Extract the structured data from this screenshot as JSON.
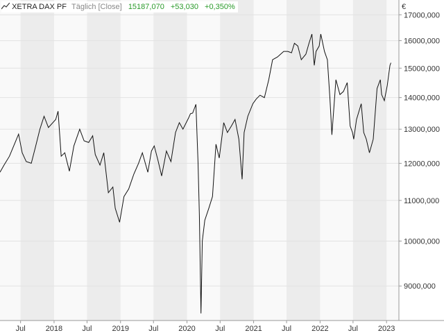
{
  "header": {
    "symbol": "XETRA DAX PF",
    "frequency": "Täglich [Close]",
    "last_value": "15187,070",
    "change": "+53,030",
    "change_pct": "+0,350%"
  },
  "currency": "€",
  "colors": {
    "line": "#111111",
    "positive": "#2a9a2a",
    "band": "#ececec",
    "grid": "#e2e2e2"
  },
  "chart_data": {
    "type": "line",
    "y_scale": "log",
    "ylim": [
      8300,
      17600
    ],
    "xlim": [
      "2017-03-10",
      "2023-03-10"
    ],
    "y_ticks": [
      {
        "value": 9000,
        "label": "9000,000"
      },
      {
        "value": 10000,
        "label": "10000,000"
      },
      {
        "value": 11000,
        "label": "11000,000"
      },
      {
        "value": 12000,
        "label": "12000,000"
      },
      {
        "value": 13000,
        "label": "13000,000"
      },
      {
        "value": 14000,
        "label": "14000,000"
      },
      {
        "value": 15000,
        "label": "15000,000"
      },
      {
        "value": 16000,
        "label": "16000,000"
      },
      {
        "value": 17000,
        "label": "17000,000"
      }
    ],
    "x_ticks": [
      {
        "date": "2017-07-01",
        "label": "Jul"
      },
      {
        "date": "2018-01-01",
        "label": "2018"
      },
      {
        "date": "2018-07-01",
        "label": "Jul"
      },
      {
        "date": "2019-01-01",
        "label": "2019"
      },
      {
        "date": "2019-07-01",
        "label": "Jul"
      },
      {
        "date": "2020-01-01",
        "label": "2020"
      },
      {
        "date": "2020-07-01",
        "label": "Jul"
      },
      {
        "date": "2021-01-01",
        "label": "2021"
      },
      {
        "date": "2021-07-01",
        "label": "Jul"
      },
      {
        "date": "2022-01-01",
        "label": "2022"
      },
      {
        "date": "2022-07-01",
        "label": "Jul"
      },
      {
        "date": "2023-01-01",
        "label": "2023"
      }
    ],
    "x": [
      "2017-03-10",
      "2017-04-01",
      "2017-05-01",
      "2017-06-01",
      "2017-06-20",
      "2017-07-10",
      "2017-08-01",
      "2017-08-29",
      "2017-09-20",
      "2017-10-15",
      "2017-11-07",
      "2017-12-01",
      "2018-01-10",
      "2018-01-23",
      "2018-02-09",
      "2018-03-01",
      "2018-03-26",
      "2018-04-20",
      "2018-05-22",
      "2018-06-15",
      "2018-07-10",
      "2018-08-01",
      "2018-08-15",
      "2018-09-10",
      "2018-10-01",
      "2018-10-26",
      "2018-11-20",
      "2018-12-03",
      "2018-12-27",
      "2019-01-20",
      "2019-02-15",
      "2019-03-15",
      "2019-04-10",
      "2019-05-01",
      "2019-05-31",
      "2019-06-20",
      "2019-07-05",
      "2019-07-25",
      "2019-08-15",
      "2019-09-10",
      "2019-10-05",
      "2019-10-30",
      "2019-11-20",
      "2019-12-10",
      "2020-01-10",
      "2020-01-20",
      "2020-02-01",
      "2020-02-19",
      "2020-03-02",
      "2020-03-09",
      "2020-03-18",
      "2020-03-25",
      "2020-04-08",
      "2020-04-30",
      "2020-05-20",
      "2020-06-08",
      "2020-06-26",
      "2020-07-21",
      "2020-08-10",
      "2020-09-01",
      "2020-09-21",
      "2020-10-12",
      "2020-10-30",
      "2020-11-10",
      "2020-11-30",
      "2020-12-28",
      "2021-01-15",
      "2021-02-05",
      "2021-03-01",
      "2021-03-25",
      "2021-04-15",
      "2021-05-12",
      "2021-06-15",
      "2021-07-08",
      "2021-07-28",
      "2021-08-13",
      "2021-09-01",
      "2021-09-20",
      "2021-10-15",
      "2021-11-01",
      "2021-11-17",
      "2021-11-30",
      "2021-12-10",
      "2021-12-27",
      "2022-01-05",
      "2022-01-25",
      "2022-02-10",
      "2022-02-24",
      "2022-03-07",
      "2022-03-29",
      "2022-04-20",
      "2022-05-09",
      "2022-05-30",
      "2022-06-15",
      "2022-06-28",
      "2022-07-05",
      "2022-07-20",
      "2022-08-15",
      "2022-08-29",
      "2022-09-12",
      "2022-09-29",
      "2022-10-20",
      "2022-11-10",
      "2022-11-28",
      "2022-12-05",
      "2022-12-20",
      "2023-01-05",
      "2023-01-20",
      "2023-01-25"
    ],
    "values": [
      11750,
      11950,
      12200,
      12600,
      12850,
      12300,
      12050,
      12000,
      12450,
      13000,
      13400,
      13050,
      13300,
      13560,
      12200,
      12300,
      11780,
      12500,
      13000,
      12650,
      12600,
      12800,
      12250,
      11950,
      12300,
      11200,
      11350,
      10800,
      10450,
      11100,
      11300,
      11700,
      12000,
      12300,
      11750,
      12350,
      12500,
      12100,
      11650,
      12350,
      12050,
      12900,
      13200,
      13000,
      13350,
      13480,
      13500,
      13780,
      12000,
      10620,
      8440,
      10000,
      10500,
      10800,
      11100,
      12550,
      12150,
      13200,
      12900,
      13100,
      13300,
      12700,
      11560,
      12900,
      13400,
      13800,
      13950,
      14080,
      14000,
      14600,
      15300,
      15400,
      15600,
      15600,
      15550,
      15900,
      15800,
      15300,
      15500,
      15900,
      16250,
      15100,
      15600,
      15800,
      16250,
      15600,
      15300,
      14000,
      12830,
      14600,
      14100,
      14200,
      14500,
      13100,
      12900,
      12700,
      13300,
      13800,
      12900,
      12700,
      12300,
      12700,
      14300,
      14600,
      14100,
      13900,
      14400,
      15100,
      15190
    ]
  }
}
